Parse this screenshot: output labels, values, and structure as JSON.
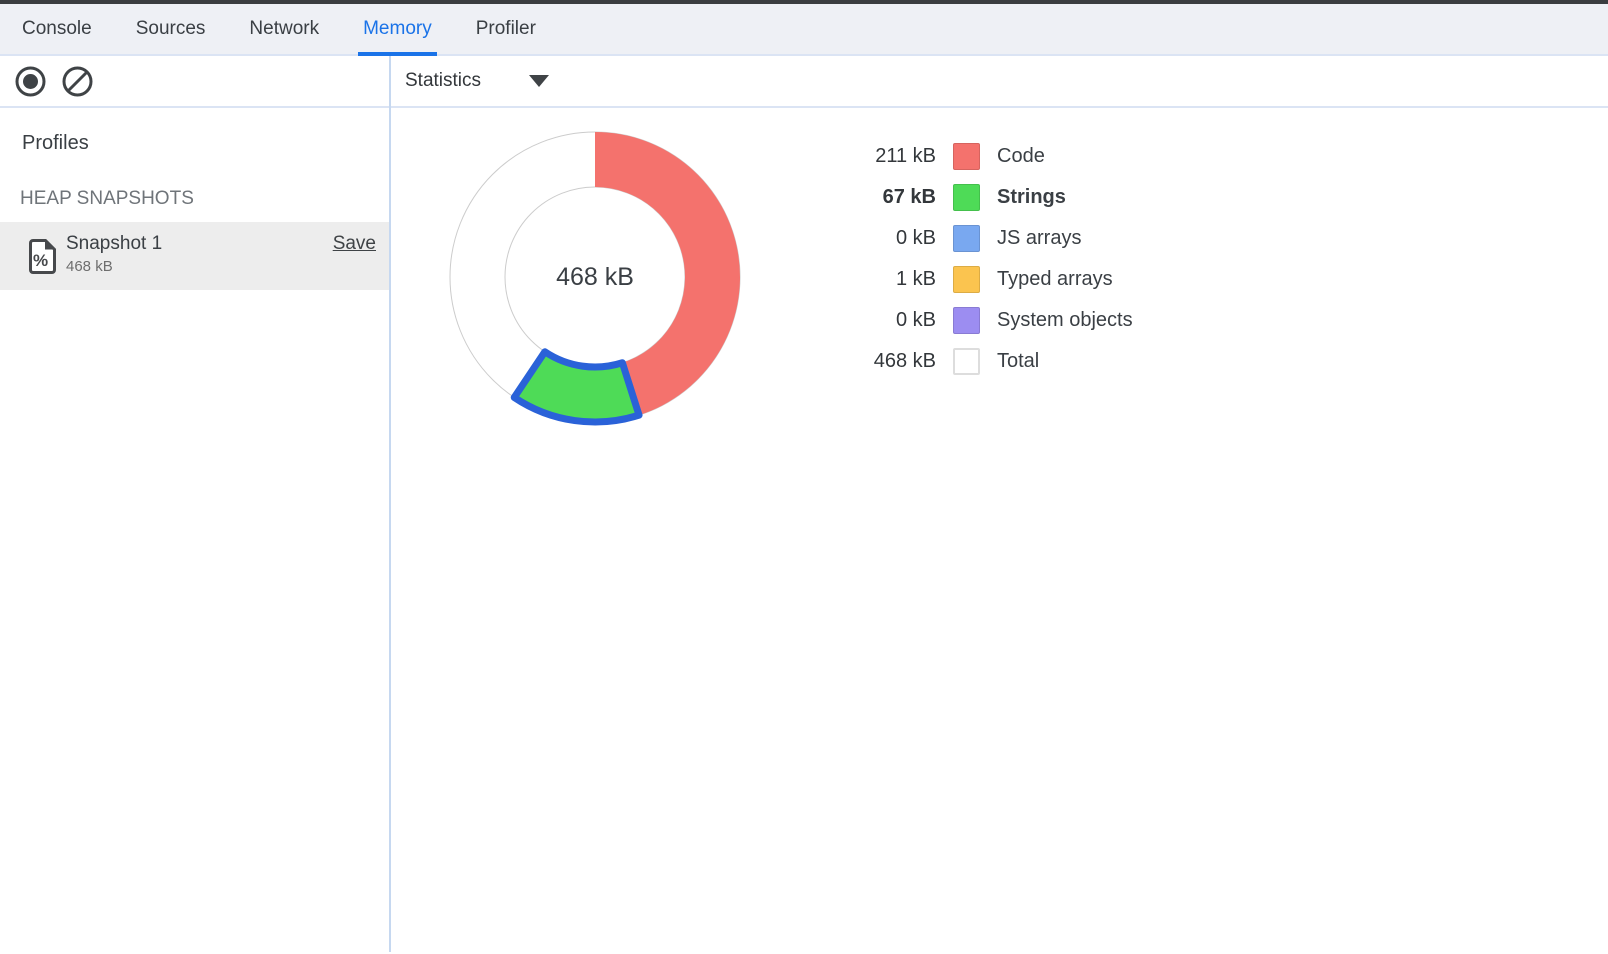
{
  "tabs": {
    "items": [
      {
        "label": "Console",
        "active": false
      },
      {
        "label": "Sources",
        "active": false
      },
      {
        "label": "Network",
        "active": false
      },
      {
        "label": "Memory",
        "active": true
      },
      {
        "label": "Profiler",
        "active": false
      }
    ],
    "active_color": "#1a73e8"
  },
  "toolbar": {
    "record_button": "record-heap-snapshot",
    "clear_button": "clear-all-profiles",
    "statistics_label": "Statistics"
  },
  "sidebar": {
    "profiles_title": "Profiles",
    "section_title": "HEAP SNAPSHOTS",
    "snapshot": {
      "name": "Snapshot 1",
      "size": "468 kB",
      "save_label": "Save",
      "selected": true
    }
  },
  "chart_data": {
    "type": "pie",
    "title": "Heap snapshot statistics",
    "unit": "kB",
    "total_kb": 468,
    "center_label": "468 kB",
    "start_angle_deg": 0,
    "direction": "clockwise",
    "legend_position": "right",
    "selection_stroke": "#2a62d8",
    "ring_stroke": "#cccccc",
    "series": [
      {
        "name": "Code",
        "value_kb": 211,
        "label": "211 kB",
        "color": "#f4726d",
        "selected": false
      },
      {
        "name": "Strings",
        "value_kb": 67,
        "label": "67 kB",
        "color": "#4edb57",
        "selected": true
      },
      {
        "name": "JS arrays",
        "value_kb": 0,
        "label": "0 kB",
        "color": "#79a8f0",
        "selected": false
      },
      {
        "name": "Typed arrays",
        "value_kb": 1,
        "label": "1 kB",
        "color": "#fbc44f",
        "selected": false
      },
      {
        "name": "System objects",
        "value_kb": 0,
        "label": "0 kB",
        "color": "#9c8df1",
        "selected": false
      },
      {
        "name": "Total",
        "value_kb": 468,
        "label": "468 kB",
        "color": "#ffffff",
        "selected": false,
        "is_total": true
      }
    ]
  }
}
